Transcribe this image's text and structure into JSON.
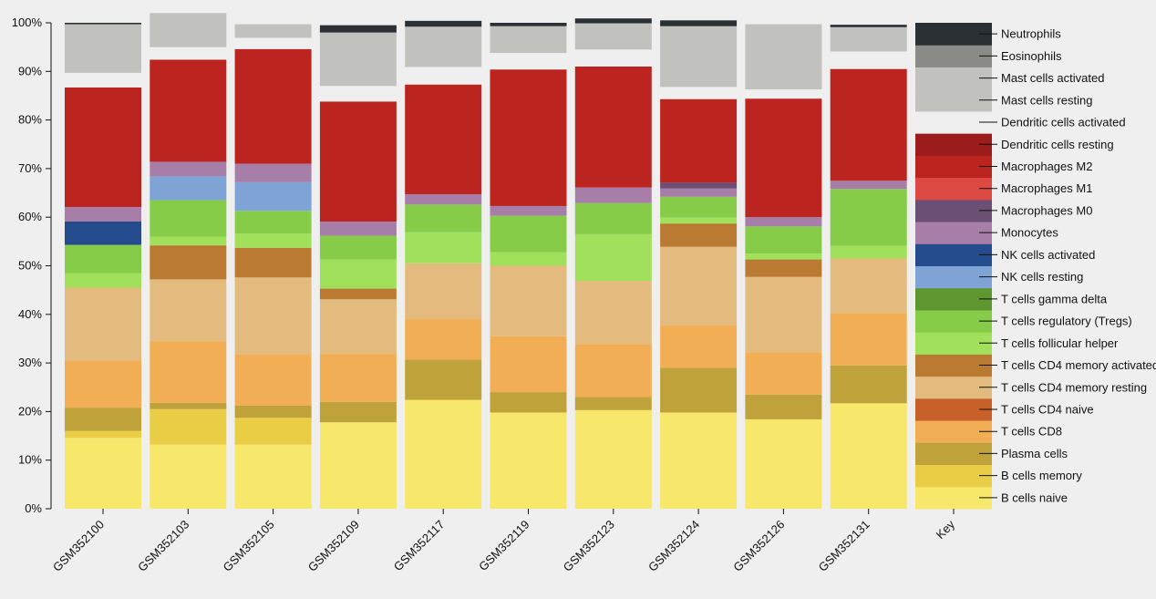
{
  "chart_data": {
    "type": "bar",
    "stacked": true,
    "ylim": [
      0,
      100
    ],
    "ytick_format": "%",
    "yticks": [
      "0%",
      "10%",
      "20%",
      "30%",
      "40%",
      "50%",
      "60%",
      "70%",
      "80%",
      "90%",
      "100%"
    ],
    "categories": [
      "GSM352100",
      "GSM352103",
      "GSM352105",
      "GSM352109",
      "GSM352117",
      "GSM352119",
      "GSM352123",
      "GSM352124",
      "GSM352126",
      "GSM352131"
    ],
    "key_label": "Key",
    "legend_placement": "right",
    "series": [
      {
        "name": "B cells naive",
        "color": "#f7e76a",
        "values": [
          14.6,
          13.2,
          13.2,
          17.8,
          22.4,
          19.8,
          20.3,
          19.8,
          18.4,
          21.7
        ]
      },
      {
        "name": "B cells memory",
        "color": "#e8cd45",
        "values": [
          1.4,
          7.3,
          5.5,
          0,
          0,
          0,
          0,
          0,
          0,
          0
        ]
      },
      {
        "name": "Plasma cells",
        "color": "#bfa33a",
        "values": [
          4.8,
          1.3,
          2.5,
          4.2,
          8.3,
          4.2,
          2.7,
          9.2,
          5.1,
          7.8
        ]
      },
      {
        "name": "T cells CD8",
        "color": "#f2ae55",
        "values": [
          9.7,
          12.7,
          10.5,
          9.8,
          8.4,
          11.5,
          10.9,
          8.7,
          8.7,
          10.8
        ]
      },
      {
        "name": "T cells CD4 naive",
        "color": "#c8602a",
        "values": [
          0,
          0,
          0,
          0,
          0,
          0,
          0,
          0,
          0,
          0
        ]
      },
      {
        "name": "T cells CD4 memory resting",
        "color": "#e3bb7e",
        "values": [
          15.0,
          12.7,
          15.9,
          11.3,
          11.4,
          14.5,
          13.0,
          16.2,
          15.5,
          11.2
        ]
      },
      {
        "name": "T cells CD4 memory activated",
        "color": "#bb7a32",
        "values": [
          0,
          7.0,
          6.1,
          2.2,
          0,
          0,
          0,
          4.8,
          3.6,
          0
        ]
      },
      {
        "name": "T cells follicular helper",
        "color": "#a1e05a",
        "values": [
          3.0,
          1.8,
          2.9,
          6.0,
          6.4,
          2.8,
          9.6,
          1.2,
          1.2,
          2.6
        ]
      },
      {
        "name": "T cells regulatory (Tregs)",
        "color": "#86cc48",
        "values": [
          5.8,
          7.5,
          4.7,
          4.9,
          5.7,
          7.5,
          6.4,
          4.3,
          5.6,
          11.7
        ]
      },
      {
        "name": "T cells gamma delta",
        "color": "#5e962f",
        "values": [
          0,
          0,
          0,
          0,
          0,
          0,
          0,
          0,
          0,
          0
        ]
      },
      {
        "name": "NK cells resting",
        "color": "#7ea3d4",
        "values": [
          0,
          4.9,
          5.9,
          0,
          0,
          0,
          0,
          0,
          0,
          0
        ]
      },
      {
        "name": "NK cells activated",
        "color": "#244b8c",
        "values": [
          4.8,
          0,
          0,
          0,
          0,
          0,
          0,
          0,
          0,
          0
        ]
      },
      {
        "name": "Monocytes",
        "color": "#a67ea8",
        "values": [
          3.0,
          3.0,
          3.8,
          2.9,
          2.1,
          2.0,
          3.2,
          1.7,
          1.9,
          1.7
        ]
      },
      {
        "name": "Macrophages M0",
        "color": "#6c4f74",
        "values": [
          0,
          0,
          0,
          0,
          0,
          0,
          0,
          1.2,
          0,
          0
        ]
      },
      {
        "name": "Macrophages M1",
        "color": "#dd4a43",
        "values": [
          0,
          0,
          0,
          0,
          0,
          0,
          0,
          0,
          0,
          0
        ]
      },
      {
        "name": "Macrophages M2",
        "color": "#bc241f",
        "values": [
          24.6,
          21.0,
          23.6,
          24.7,
          22.6,
          28.1,
          24.9,
          17.2,
          24.4,
          23.0
        ]
      },
      {
        "name": "Dendritic cells resting",
        "color": "#9b1c1a",
        "values": [
          0,
          0,
          0,
          0,
          0,
          0,
          0,
          0,
          0,
          0
        ]
      },
      {
        "name": "Dendritic cells activated",
        "color": "#efefef",
        "values": [
          3.0,
          2.6,
          2.3,
          3.2,
          3.6,
          3.4,
          3.5,
          2.5,
          1.9,
          3.6
        ]
      },
      {
        "name": "Mast cells resting",
        "color": "#c1c1bd",
        "values": [
          10.0,
          7.0,
          2.8,
          11.0,
          8.3,
          5.5,
          5.4,
          12.5,
          13.4,
          5.0
        ]
      },
      {
        "name": "Mast cells activated",
        "color": "#c1c1bd",
        "values": [
          0,
          0,
          0,
          0,
          0,
          0,
          0,
          0,
          0,
          0
        ]
      },
      {
        "name": "Eosinophils",
        "color": "#8a8b86",
        "values": [
          0,
          0,
          0,
          0,
          0,
          0,
          0,
          0,
          0,
          0
        ]
      },
      {
        "name": "Neutrophils",
        "color": "#2b3035",
        "values": [
          0.3,
          0,
          0,
          1.5,
          1.2,
          0.7,
          1.0,
          1.2,
          0,
          0.5
        ]
      }
    ]
  }
}
